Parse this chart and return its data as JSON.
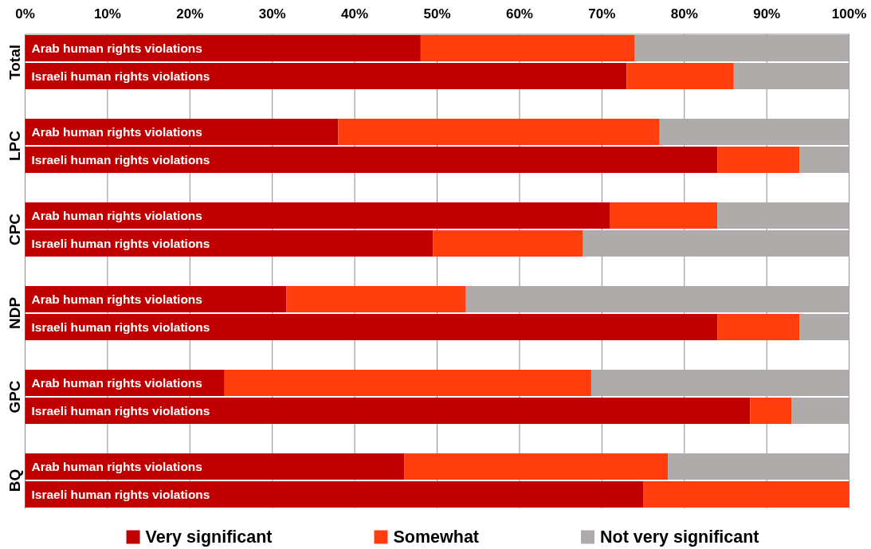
{
  "chart_data": [
    {
      "type": "bar",
      "orientation": "horizontal",
      "stacked": true,
      "ylabel": "Total",
      "categories": [
        "Arab human rights violations",
        "Israeli human rights violations"
      ],
      "series": [
        {
          "color": "#c00000",
          "values": [
            48,
            73
          ]
        },
        {
          "color": "#ff3d0d",
          "values": [
            26,
            13
          ]
        },
        {
          "color": "#afabab",
          "values": [
            26,
            14
          ]
        }
      ],
      "xlim": [
        0,
        100
      ],
      "xticks": [
        {
          "value": 0,
          "label": "0%"
        },
        {
          "value": 10,
          "label": "10%"
        },
        {
          "value": 20,
          "label": "20%"
        },
        {
          "value": 30,
          "label": "30%"
        },
        {
          "value": 40,
          "label": "40%"
        },
        {
          "value": 50,
          "label": "50%"
        },
        {
          "value": 60,
          "label": "60%"
        },
        {
          "value": 70,
          "label": "70%"
        },
        {
          "value": 80,
          "label": "80%"
        },
        {
          "value": 90,
          "label": "90%"
        },
        {
          "value": 100,
          "label": "100%"
        }
      ],
      "grid": "x"
    },
    {
      "type": "bar",
      "orientation": "horizontal",
      "stacked": true,
      "ylabel": "LPC",
      "categories": [
        "Arab human rights violations",
        "Israeli human rights violations"
      ],
      "series": [
        {
          "color": "#c00000",
          "values": [
            38,
            84
          ]
        },
        {
          "color": "#ff3d0d",
          "values": [
            39,
            10
          ]
        },
        {
          "color": "#afabab",
          "values": [
            23,
            6
          ]
        }
      ],
      "xlim": [
        0,
        100
      ],
      "xticks": [
        {
          "value": 0,
          "label": null
        },
        {
          "value": 10,
          "label": null
        },
        {
          "value": 20,
          "label": null
        },
        {
          "value": 30,
          "label": null
        },
        {
          "value": 40,
          "label": null
        },
        {
          "value": 50,
          "label": null
        },
        {
          "value": 60,
          "label": null
        },
        {
          "value": 70,
          "label": null
        },
        {
          "value": 80,
          "label": null
        },
        {
          "value": 90,
          "label": null
        },
        {
          "value": 100,
          "label": null
        }
      ],
      "grid": "x",
      "tick_labels": "y"
    },
    {
      "type": "bar",
      "orientation": "horizontal",
      "stacked": true,
      "ylabel": "CPC",
      "categories": [
        "Arab human rights violations",
        "Israeli human rights violations"
      ],
      "series": [
        {
          "color": "#c00000",
          "values": [
            71,
            49.5
          ]
        },
        {
          "color": "#ff3d0d",
          "values": [
            13,
            18.2
          ]
        },
        {
          "color": "#afabab",
          "values": [
            16,
            32.3
          ]
        }
      ],
      "xlim": [
        0,
        100
      ],
      "xticks": [
        {
          "value": 0,
          "label": null
        },
        {
          "value": 10,
          "label": null
        },
        {
          "value": 20,
          "label": null
        },
        {
          "value": 30,
          "label": null
        },
        {
          "value": 40,
          "label": null
        },
        {
          "value": 50,
          "label": null
        },
        {
          "value": 60,
          "label": null
        },
        {
          "value": 70,
          "label": null
        },
        {
          "value": 80,
          "label": null
        },
        {
          "value": 90,
          "label": null
        },
        {
          "value": 100,
          "label": null
        }
      ],
      "grid": "x",
      "tick_labels": "y"
    },
    {
      "type": "bar",
      "orientation": "horizontal",
      "stacked": true,
      "ylabel": "NDP",
      "categories": [
        "Arab human rights violations",
        "Israeli human rights violations"
      ],
      "series": [
        {
          "color": "#c00000",
          "values": [
            31.7,
            84
          ]
        },
        {
          "color": "#ff3d0d",
          "values": [
            21.8,
            10
          ]
        },
        {
          "color": "#afabab",
          "values": [
            46.5,
            6
          ]
        }
      ],
      "xlim": [
        0,
        100
      ],
      "xticks": [
        {
          "value": 0,
          "label": null
        },
        {
          "value": 10,
          "label": null
        },
        {
          "value": 20,
          "label": null
        },
        {
          "value": 30,
          "label": null
        },
        {
          "value": 40,
          "label": null
        },
        {
          "value": 50,
          "label": null
        },
        {
          "value": 60,
          "label": null
        },
        {
          "value": 70,
          "label": null
        },
        {
          "value": 80,
          "label": null
        },
        {
          "value": 90,
          "label": null
        },
        {
          "value": 100,
          "label": null
        }
      ],
      "grid": "x",
      "tick_labels": "y"
    },
    {
      "type": "bar",
      "orientation": "horizontal",
      "stacked": true,
      "ylabel": "GPC",
      "categories": [
        "Arab human rights violations",
        "Israeli human rights violations"
      ],
      "series": [
        {
          "color": "#c00000",
          "values": [
            24.2,
            88
          ]
        },
        {
          "color": "#ff3d0d",
          "values": [
            44.5,
            5
          ]
        },
        {
          "color": "#afabab",
          "values": [
            31.3,
            7
          ]
        }
      ],
      "xlim": [
        0,
        100
      ],
      "xticks": [
        {
          "value": 0,
          "label": null
        },
        {
          "value": 10,
          "label": null
        },
        {
          "value": 20,
          "label": null
        },
        {
          "value": 30,
          "label": null
        },
        {
          "value": 40,
          "label": null
        },
        {
          "value": 50,
          "label": null
        },
        {
          "value": 60,
          "label": null
        },
        {
          "value": 70,
          "label": null
        },
        {
          "value": 80,
          "label": null
        },
        {
          "value": 90,
          "label": null
        },
        {
          "value": 100,
          "label": null
        }
      ],
      "grid": "x",
      "tick_labels": "y"
    },
    {
      "type": "bar",
      "orientation": "horizontal",
      "stacked": true,
      "ylabel": "BQ",
      "categories": [
        "Arab human rights violations",
        "Israeli human rights violations"
      ],
      "series": [
        {
          "name": "Very significant",
          "color": "#c00000",
          "values": [
            46,
            75
          ]
        },
        {
          "name": "Somewhat",
          "color": "#ff3d0d",
          "values": [
            32,
            25
          ]
        },
        {
          "name": "Not very significant",
          "color": "#afabab",
          "values": [
            22,
            0
          ]
        }
      ],
      "xlim": [
        0,
        100
      ],
      "xticks": [
        {
          "value": 0,
          "label": null
        },
        {
          "value": 10,
          "label": null
        },
        {
          "value": 20,
          "label": null
        },
        {
          "value": 30,
          "label": null
        },
        {
          "value": 40,
          "label": null
        },
        {
          "value": 50,
          "label": null
        },
        {
          "value": 60,
          "label": null
        },
        {
          "value": 70,
          "label": null
        },
        {
          "value": 80,
          "label": null
        },
        {
          "value": 90,
          "label": null
        },
        {
          "value": 100,
          "label": null
        }
      ],
      "grid": "x",
      "tick_labels": "y",
      "legend": "bottom"
    }
  ]
}
